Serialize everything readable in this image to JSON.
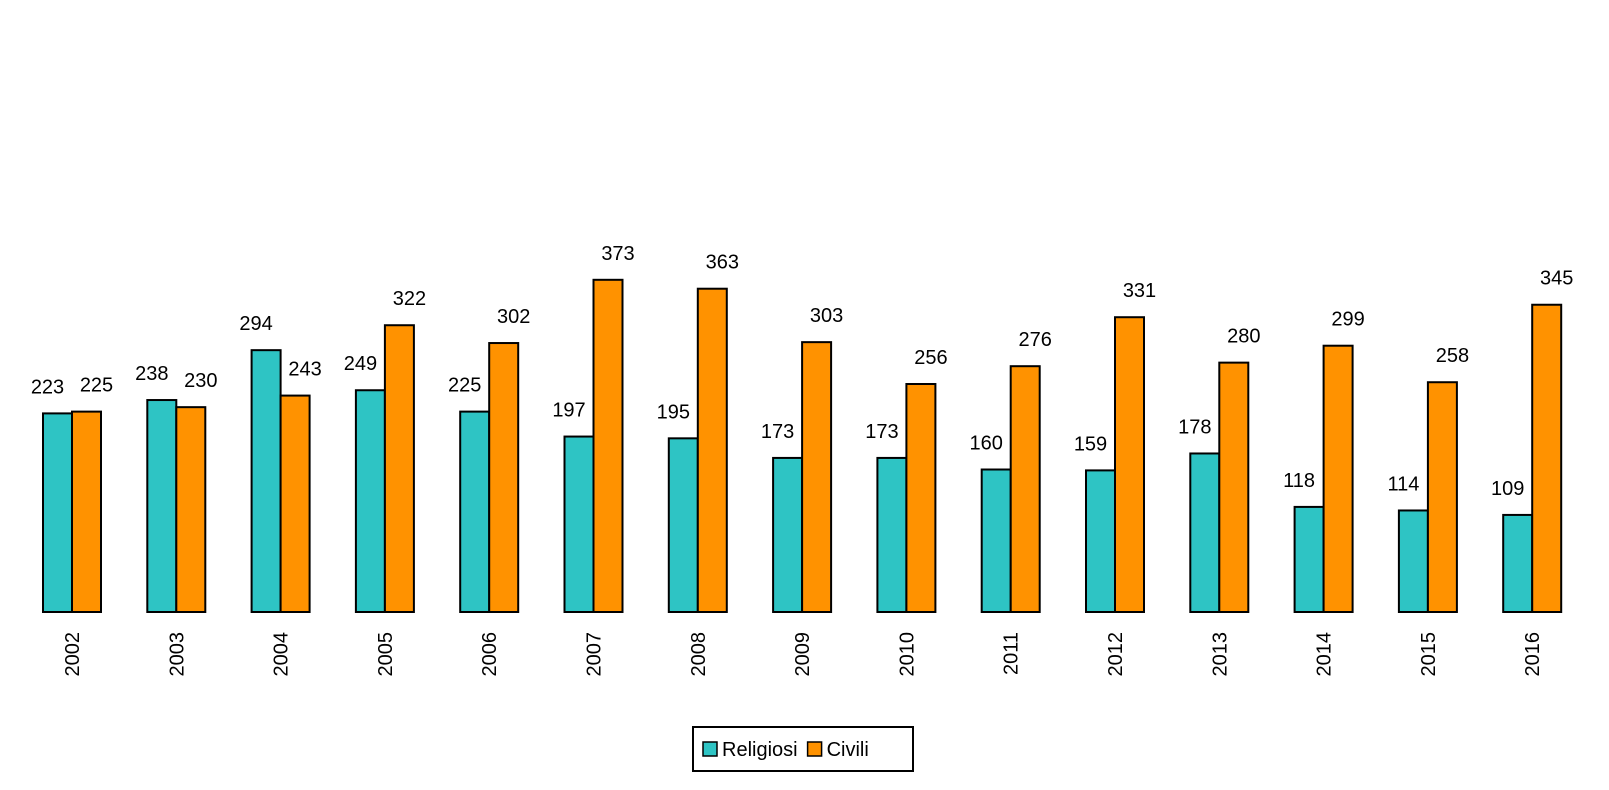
{
  "chart_data": {
    "type": "bar",
    "categories": [
      "2002",
      "2003",
      "2004",
      "2005",
      "2006",
      "2007",
      "2008",
      "2009",
      "2010",
      "2011",
      "2012",
      "2013",
      "2014",
      "2015",
      "2016"
    ],
    "series": [
      {
        "name": "Religiosi",
        "color": "#2EC4C4",
        "values": [
          223,
          238,
          294,
          249,
          225,
          197,
          195,
          173,
          173,
          160,
          159,
          178,
          118,
          114,
          109
        ]
      },
      {
        "name": "Civili",
        "color": "#FF9200",
        "values": [
          225,
          230,
          243,
          322,
          302,
          373,
          363,
          303,
          256,
          276,
          331,
          280,
          299,
          258,
          345
        ]
      }
    ],
    "ylim": [
      0,
      410
    ],
    "grid": false,
    "legend_position": "bottom-center",
    "data_labels": true
  }
}
